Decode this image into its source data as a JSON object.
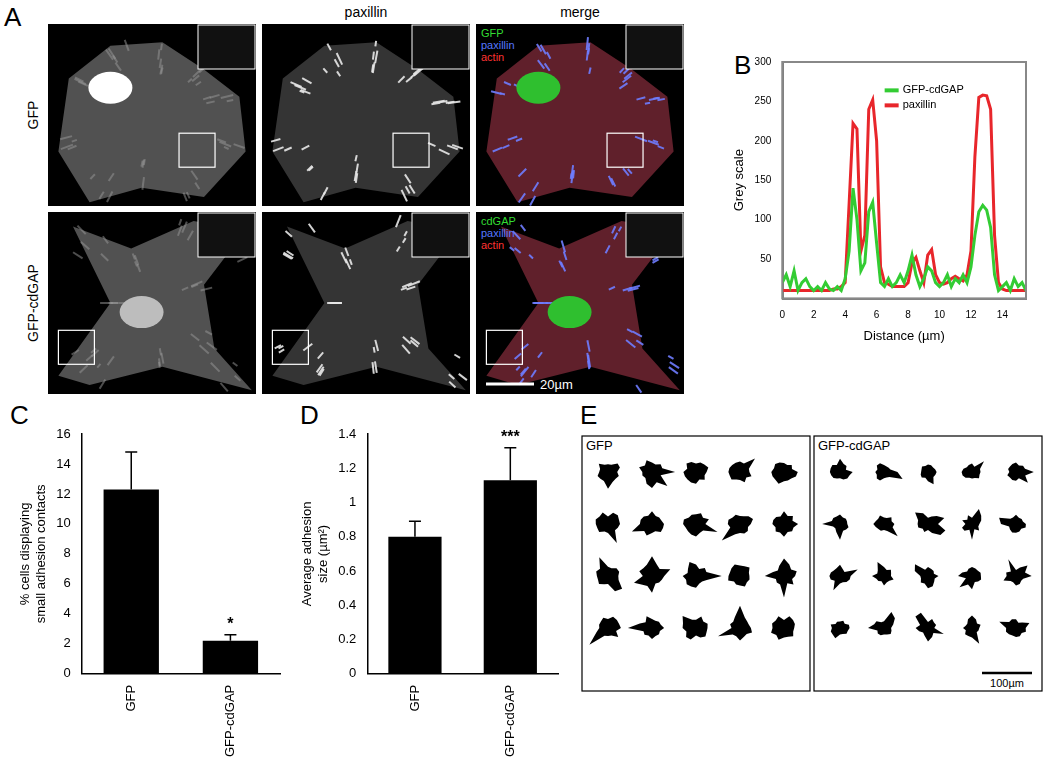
{
  "panels": {
    "A": {
      "label": "A",
      "column_titles": [
        "paxillin",
        "merge"
      ],
      "rows": [
        {
          "label": "GFP",
          "merge_legend": [
            {
              "text": "GFP",
              "color": "#33dd33"
            },
            {
              "text": "paxillin",
              "color": "#5577ff"
            },
            {
              "text": "actin",
              "color": "#ff3333"
            }
          ]
        },
        {
          "label": "GFP-cdGAP",
          "merge_legend": [
            {
              "text": "cdGAP",
              "color": "#33dd33"
            },
            {
              "text": "paxillin",
              "color": "#5577ff"
            },
            {
              "text": "actin",
              "color": "#ff3333"
            }
          ]
        }
      ],
      "scale_bar": "20µm"
    },
    "E": {
      "label": "E",
      "groups": [
        "GFP",
        "GFP-cdGAP"
      ],
      "scale_bar": "100µm"
    }
  },
  "chart_data": [
    {
      "panel": "B",
      "type": "line",
      "x_label": "Distance (µm)",
      "y_label": "Grey scale",
      "xlim": [
        0,
        15.5
      ],
      "xticks": [
        0,
        2,
        4,
        6,
        8,
        10,
        12,
        14
      ],
      "ylim": [
        0,
        300
      ],
      "yticks": [
        50,
        100,
        150,
        200,
        250,
        300
      ],
      "grid": false,
      "legend": "top",
      "x": [
        0,
        0.25,
        0.5,
        0.75,
        1,
        1.25,
        1.5,
        1.75,
        2,
        2.25,
        2.5,
        2.75,
        3,
        3.25,
        3.5,
        3.75,
        4,
        4.25,
        4.5,
        4.75,
        5,
        5.25,
        5.5,
        5.75,
        6,
        6.25,
        6.5,
        6.75,
        7,
        7.25,
        7.5,
        7.75,
        8,
        8.25,
        8.5,
        8.75,
        9,
        9.25,
        9.5,
        9.75,
        10,
        10.25,
        10.5,
        10.75,
        11,
        11.25,
        11.5,
        11.75,
        12,
        12.25,
        12.5,
        12.75,
        13,
        13.25,
        13.5,
        13.75,
        14,
        14.25,
        14.5,
        14.75,
        15,
        15.25,
        15.5
      ],
      "series": [
        {
          "name": "GFP-cdGAP",
          "color": "#33cc33",
          "values": [
            20,
            30,
            15,
            35,
            10,
            20,
            25,
            15,
            10,
            15,
            10,
            20,
            12,
            10,
            15,
            10,
            25,
            60,
            140,
            100,
            35,
            45,
            110,
            122,
            70,
            20,
            15,
            25,
            15,
            20,
            30,
            20,
            35,
            55,
            30,
            15,
            25,
            40,
            35,
            20,
            15,
            20,
            30,
            15,
            25,
            20,
            30,
            20,
            40,
            80,
            110,
            118,
            112,
            90,
            30,
            10,
            15,
            20,
            10,
            25,
            15,
            20,
            10
          ]
        },
        {
          "name": "paxillin",
          "color": "#e8262b",
          "values": [
            10,
            10,
            10,
            10,
            10,
            10,
            10,
            10,
            10,
            10,
            10,
            10,
            10,
            12,
            12,
            15,
            20,
            120,
            222,
            215,
            60,
            80,
            240,
            252,
            200,
            40,
            20,
            18,
            15,
            15,
            15,
            15,
            20,
            45,
            52,
            35,
            20,
            55,
            62,
            30,
            20,
            18,
            20,
            25,
            28,
            25,
            22,
            30,
            60,
            180,
            255,
            258,
            257,
            240,
            80,
            20,
            12,
            10,
            10,
            10,
            10,
            10,
            10
          ]
        }
      ]
    },
    {
      "panel": "C",
      "type": "bar",
      "y_label": [
        "% cells displaying",
        "small adhesion contacts"
      ],
      "categories": [
        "GFP",
        "GFP-cdGAP"
      ],
      "values": [
        12.3,
        2.2
      ],
      "errors": [
        2.5,
        0.4
      ],
      "color": "#000000",
      "ylim": [
        0,
        16
      ],
      "yticks": [
        0,
        2,
        4,
        6,
        8,
        10,
        12,
        14,
        16
      ],
      "grid": false,
      "annotations": [
        {
          "category": "GFP-cdGAP",
          "text": "*"
        }
      ]
    },
    {
      "panel": "D",
      "type": "bar",
      "y_label": [
        "Average adhesion",
        "size (µm²)"
      ],
      "categories": [
        "GFP",
        "GFP-cdGAP"
      ],
      "values": [
        0.8,
        1.13
      ],
      "errors": [
        0.09,
        0.19
      ],
      "color": "#000000",
      "ylim": [
        0,
        1.4
      ],
      "yticks": [
        0,
        0.2,
        0.4,
        0.6,
        0.8,
        1,
        1.2,
        1.4
      ],
      "grid": false,
      "annotations": [
        {
          "category": "GFP-cdGAP",
          "text": "***"
        }
      ]
    }
  ]
}
